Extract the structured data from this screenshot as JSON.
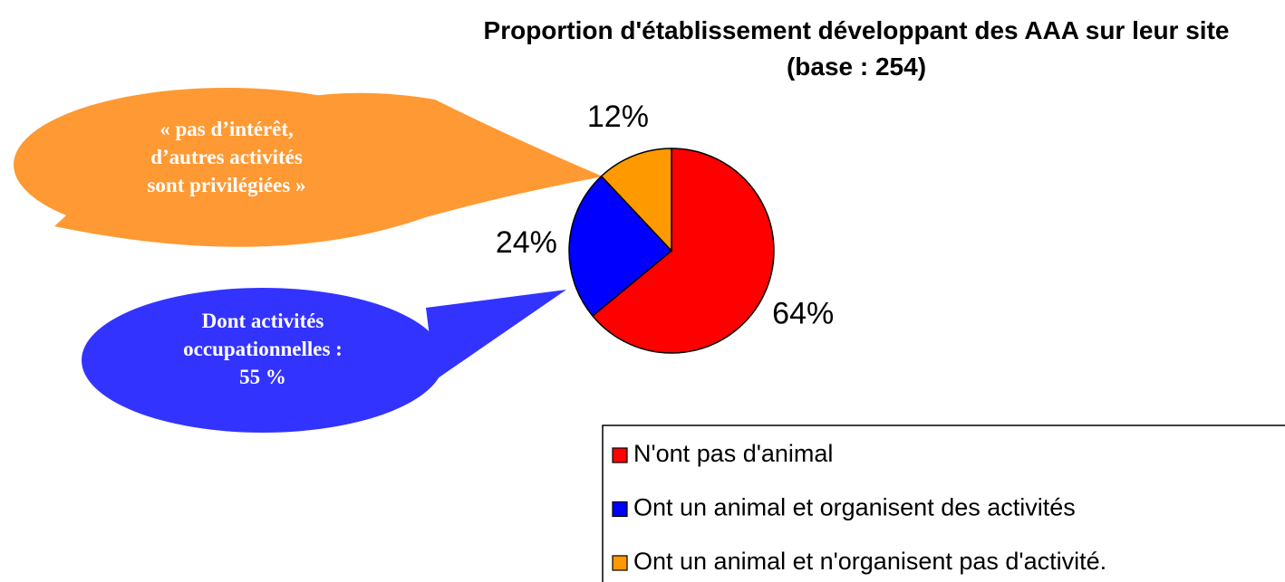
{
  "chart_data": {
    "type": "pie",
    "title": "Proportion d'établissement développant des AAA sur leur site (base : 254)",
    "categories": [
      "N'ont pas d'animal",
      "Ont un animal et organisent des activités",
      "Ont un animal et n'organisent pas d'activité."
    ],
    "values": [
      64,
      24,
      12
    ],
    "value_labels": [
      "64%",
      "24%",
      "12%"
    ],
    "colors": [
      "#ff0000",
      "#0000ff",
      "#ff9900"
    ],
    "legend": "bottom-right",
    "annotations": [
      [
        "« pas d’intérêt,",
        "d’autres activités",
        "sont privilégiées »"
      ],
      [
        "Dont activités",
        "occupationnelles :",
        "55 %"
      ]
    ]
  }
}
